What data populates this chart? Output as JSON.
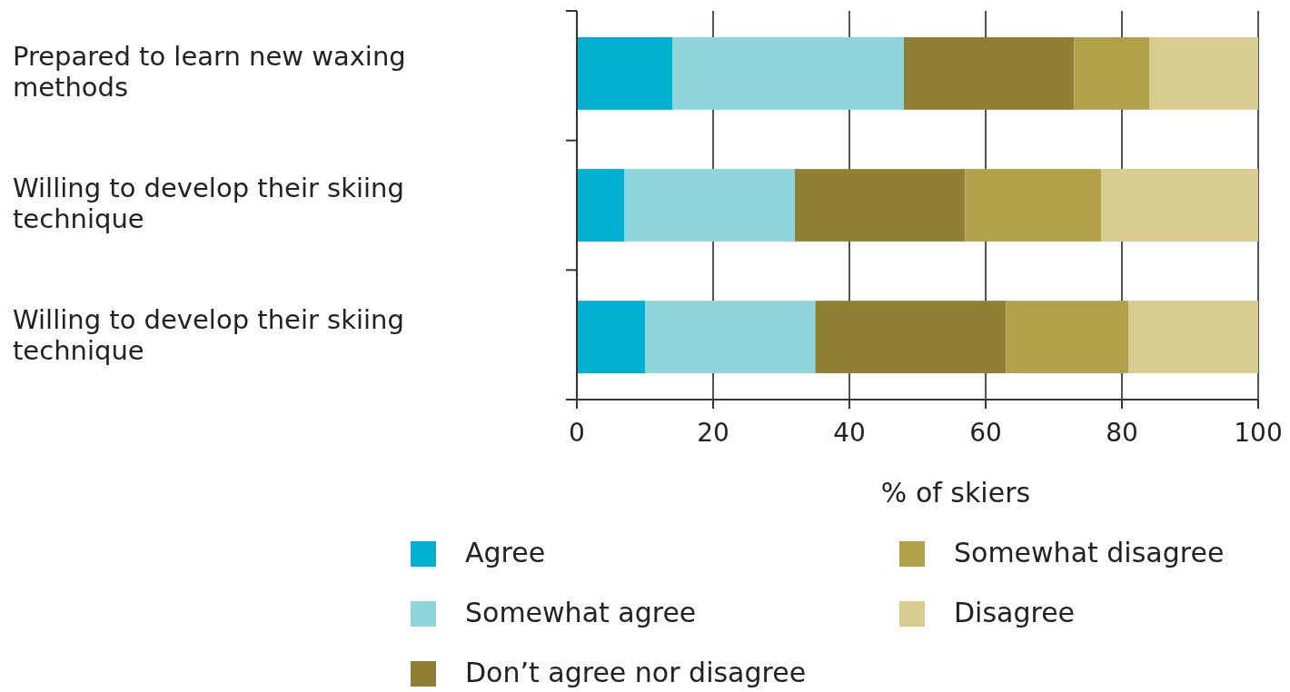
{
  "chart_data": {
    "type": "bar",
    "orientation": "horizontal",
    "stacked": true,
    "xlabel": "% of skiers",
    "categories": [
      "Prepared to learn new waxing methods",
      "Willing to develop their skiing technique",
      "Willing to develop their skiing technique"
    ],
    "series": [
      {
        "name": "Agree",
        "color": "#00b0d0",
        "values": [
          14,
          7,
          10
        ]
      },
      {
        "name": "Somewhat agree",
        "color": "#8fd6dc",
        "values": [
          34,
          25,
          25
        ]
      },
      {
        "name": "Don’t agree nor disagree",
        "color": "#917f33",
        "values": [
          25,
          25,
          28
        ]
      },
      {
        "name": "Somewhat disagree",
        "color": "#b3a14a",
        "values": [
          11,
          20,
          18
        ]
      },
      {
        "name": "Disagree",
        "color": "#d8cd8f",
        "values": [
          16,
          23,
          19
        ]
      }
    ],
    "xlim": [
      0,
      100
    ],
    "xticks": [
      0,
      20,
      40,
      60,
      80,
      100
    ],
    "grid": "x",
    "legend": "bottom"
  }
}
